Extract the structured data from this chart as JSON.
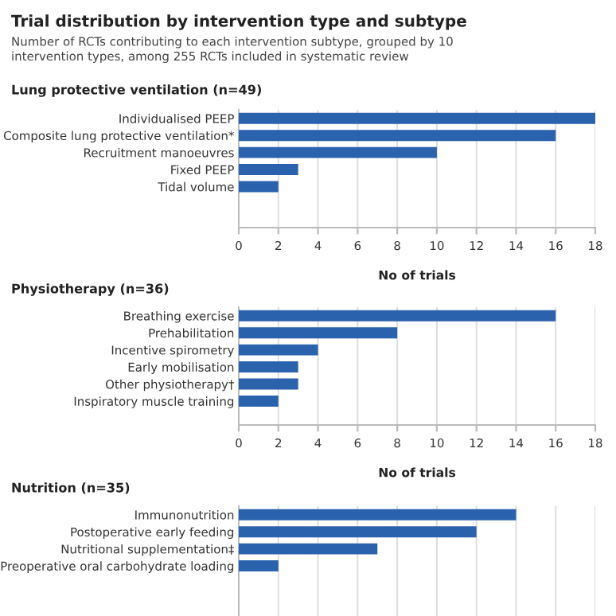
{
  "chart_data": [
    {
      "type": "other",
      "title": "Trial distribution by intervention type and subtype",
      "subtitle": "Number of RCTs contributing to each intervention subtype, grouped by 10 intervention types, among 255 RCTs included in systematic review"
    },
    {
      "type": "bar",
      "orientation": "horizontal",
      "title": "Lung protective ventilation (n=49)",
      "xlabel": "No of trials",
      "categories": [
        "Individualised PEEP",
        "Composite lung protective ventilation*",
        "Recruitment manoeuvres",
        "Fixed PEEP",
        "Tidal volume"
      ],
      "values": [
        18,
        16,
        10,
        3,
        2
      ],
      "color": "#2b62ad",
      "xlim": [
        0,
        18
      ],
      "xticks": [
        0,
        2,
        4,
        6,
        8,
        10,
        12,
        14,
        16,
        18
      ],
      "grid": "x"
    },
    {
      "type": "bar",
      "orientation": "horizontal",
      "title": "Physiotherapy (n=36)",
      "xlabel": "No of trials",
      "categories": [
        "Breathing exercise",
        "Prehabilitation",
        "Incentive spirometry",
        "Early mobilisation",
        "Other physiotherapy†",
        "Inspiratory muscle training"
      ],
      "values": [
        16,
        8,
        4,
        3,
        3,
        2
      ],
      "color": "#2b62ad",
      "xlim": [
        0,
        18
      ],
      "xticks": [
        0,
        2,
        4,
        6,
        8,
        10,
        12,
        14,
        16,
        18
      ],
      "grid": "x"
    },
    {
      "type": "bar",
      "orientation": "horizontal",
      "title": "Nutrition (n=35)",
      "categories": [
        "Immunonutrition",
        "Postoperative early feeding",
        "Nutritional supplementation‡",
        "Preoperative oral carbohydrate loading"
      ],
      "values": [
        14,
        12,
        7,
        2
      ],
      "color": "#2b62ad",
      "xlim": [
        0,
        18
      ],
      "xticks": [
        0,
        2,
        4,
        6,
        8,
        10,
        12,
        14,
        16,
        18
      ],
      "grid": "x",
      "tick_labels": "y"
    }
  ]
}
